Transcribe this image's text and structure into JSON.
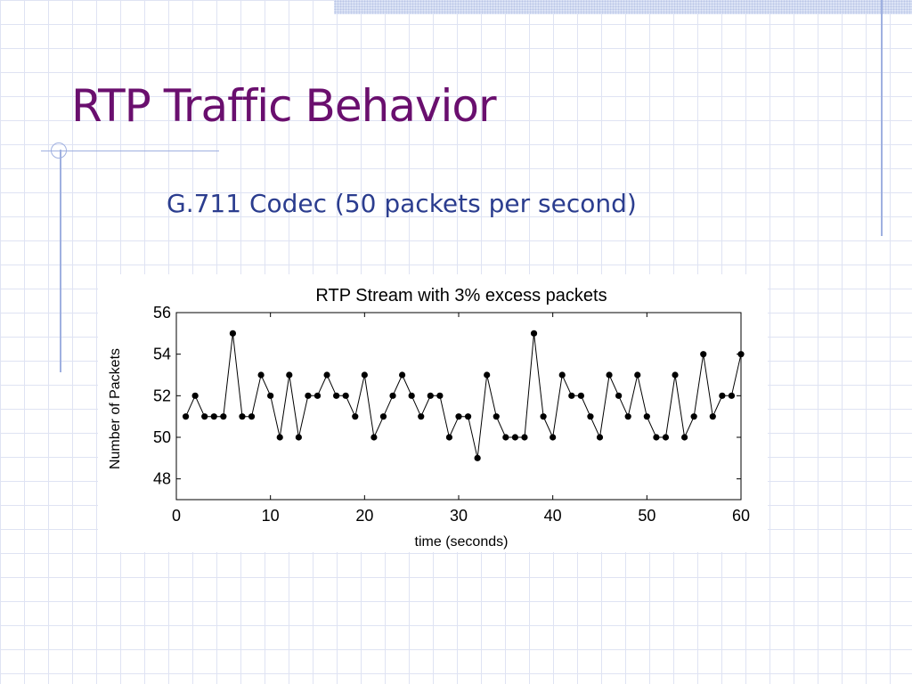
{
  "slide": {
    "title": "RTP Traffic Behavior",
    "subtitle": "G.711 Codec (50 packets per second)"
  },
  "theme": {
    "title_color": "#6a0f6e",
    "subtitle_color": "#2b3d8f",
    "rule_color": "#9fb0e0",
    "grid_color": "#dfe3f3"
  },
  "chart_data": {
    "type": "line",
    "title": "RTP Stream with 3% excess packets",
    "xlabel": "time (seconds)",
    "ylabel": "Number of Packets",
    "xlim": [
      0,
      60
    ],
    "ylim": [
      47,
      56
    ],
    "xticks": [
      0,
      10,
      20,
      30,
      40,
      50,
      60
    ],
    "yticks": [
      48,
      50,
      52,
      54,
      56
    ],
    "grid": false,
    "marker": "filled-circle",
    "line_color": "#000000",
    "series": [
      {
        "x": [
          1,
          2,
          3,
          4,
          5,
          6,
          7,
          8,
          9,
          10,
          11,
          12,
          13,
          14,
          15,
          16,
          17,
          18,
          19,
          20,
          21,
          22,
          23,
          24,
          25,
          26,
          27,
          28,
          29,
          30,
          31,
          32,
          33,
          34,
          35,
          36,
          37,
          38,
          39,
          40,
          41,
          42,
          43,
          44,
          45,
          46,
          47,
          48,
          49,
          50,
          51,
          52,
          53,
          54,
          55,
          56,
          57,
          58,
          59,
          60
        ],
        "y": [
          51,
          52,
          51,
          51,
          51,
          55,
          51,
          51,
          53,
          52,
          50,
          53,
          50,
          52,
          52,
          53,
          52,
          52,
          51,
          53,
          50,
          51,
          52,
          53,
          52,
          51,
          52,
          52,
          50,
          51,
          51,
          49,
          53,
          51,
          50,
          50,
          50,
          55,
          51,
          50,
          53,
          52,
          52,
          51,
          50,
          53,
          52,
          51,
          53,
          51,
          50,
          50,
          53,
          50,
          51,
          54,
          51,
          52,
          52,
          54
        ]
      }
    ]
  }
}
